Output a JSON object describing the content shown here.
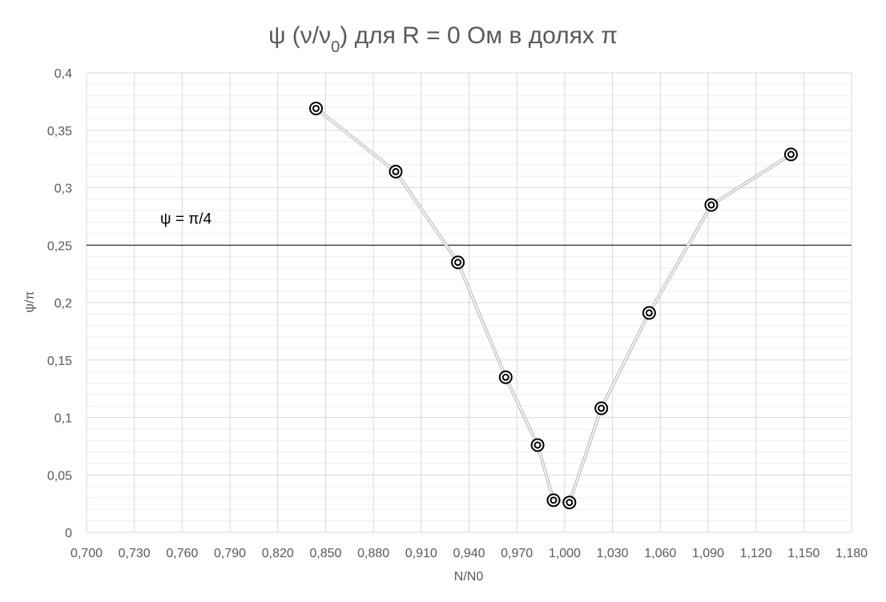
{
  "chart_data": {
    "type": "scatter",
    "title": {
      "main": "ψ (ν/ν",
      "sub": "0",
      "rest": ") для R = 0 Ом в долях π"
    },
    "xlabel": "N/N0",
    "ylabel": "ψ/π",
    "xlim": [
      0.7,
      1.18
    ],
    "ylim": [
      0,
      0.4
    ],
    "x_ticks": [
      "0,700",
      "0,730",
      "0,760",
      "0,790",
      "0,820",
      "0,850",
      "0,880",
      "0,910",
      "0,940",
      "0,970",
      "1,000",
      "1,030",
      "1,060",
      "1,090",
      "1,120",
      "1,150",
      "1,180"
    ],
    "y_ticks": [
      "0",
      "0,05",
      "0,1",
      "0,15",
      "0,2",
      "0,25",
      "0,3",
      "0,35",
      "0,4"
    ],
    "grid": true,
    "series": [
      {
        "x": [
          0.844,
          0.894,
          0.933,
          0.963,
          0.983,
          0.993,
          1.003,
          1.023,
          1.053,
          1.092,
          1.142
        ],
        "y": [
          0.369,
          0.314,
          0.235,
          0.135,
          0.076,
          0.028,
          0.026,
          0.108,
          0.191,
          0.285,
          0.329
        ],
        "color": "#d9d9d9",
        "marker_color": "#000000"
      }
    ],
    "reference_line": {
      "y": 0.25,
      "label": "ψ = π/4",
      "color": "#000000"
    },
    "gridline_color": "#d9d9d9",
    "minor_gridline_color": "#efefef"
  }
}
